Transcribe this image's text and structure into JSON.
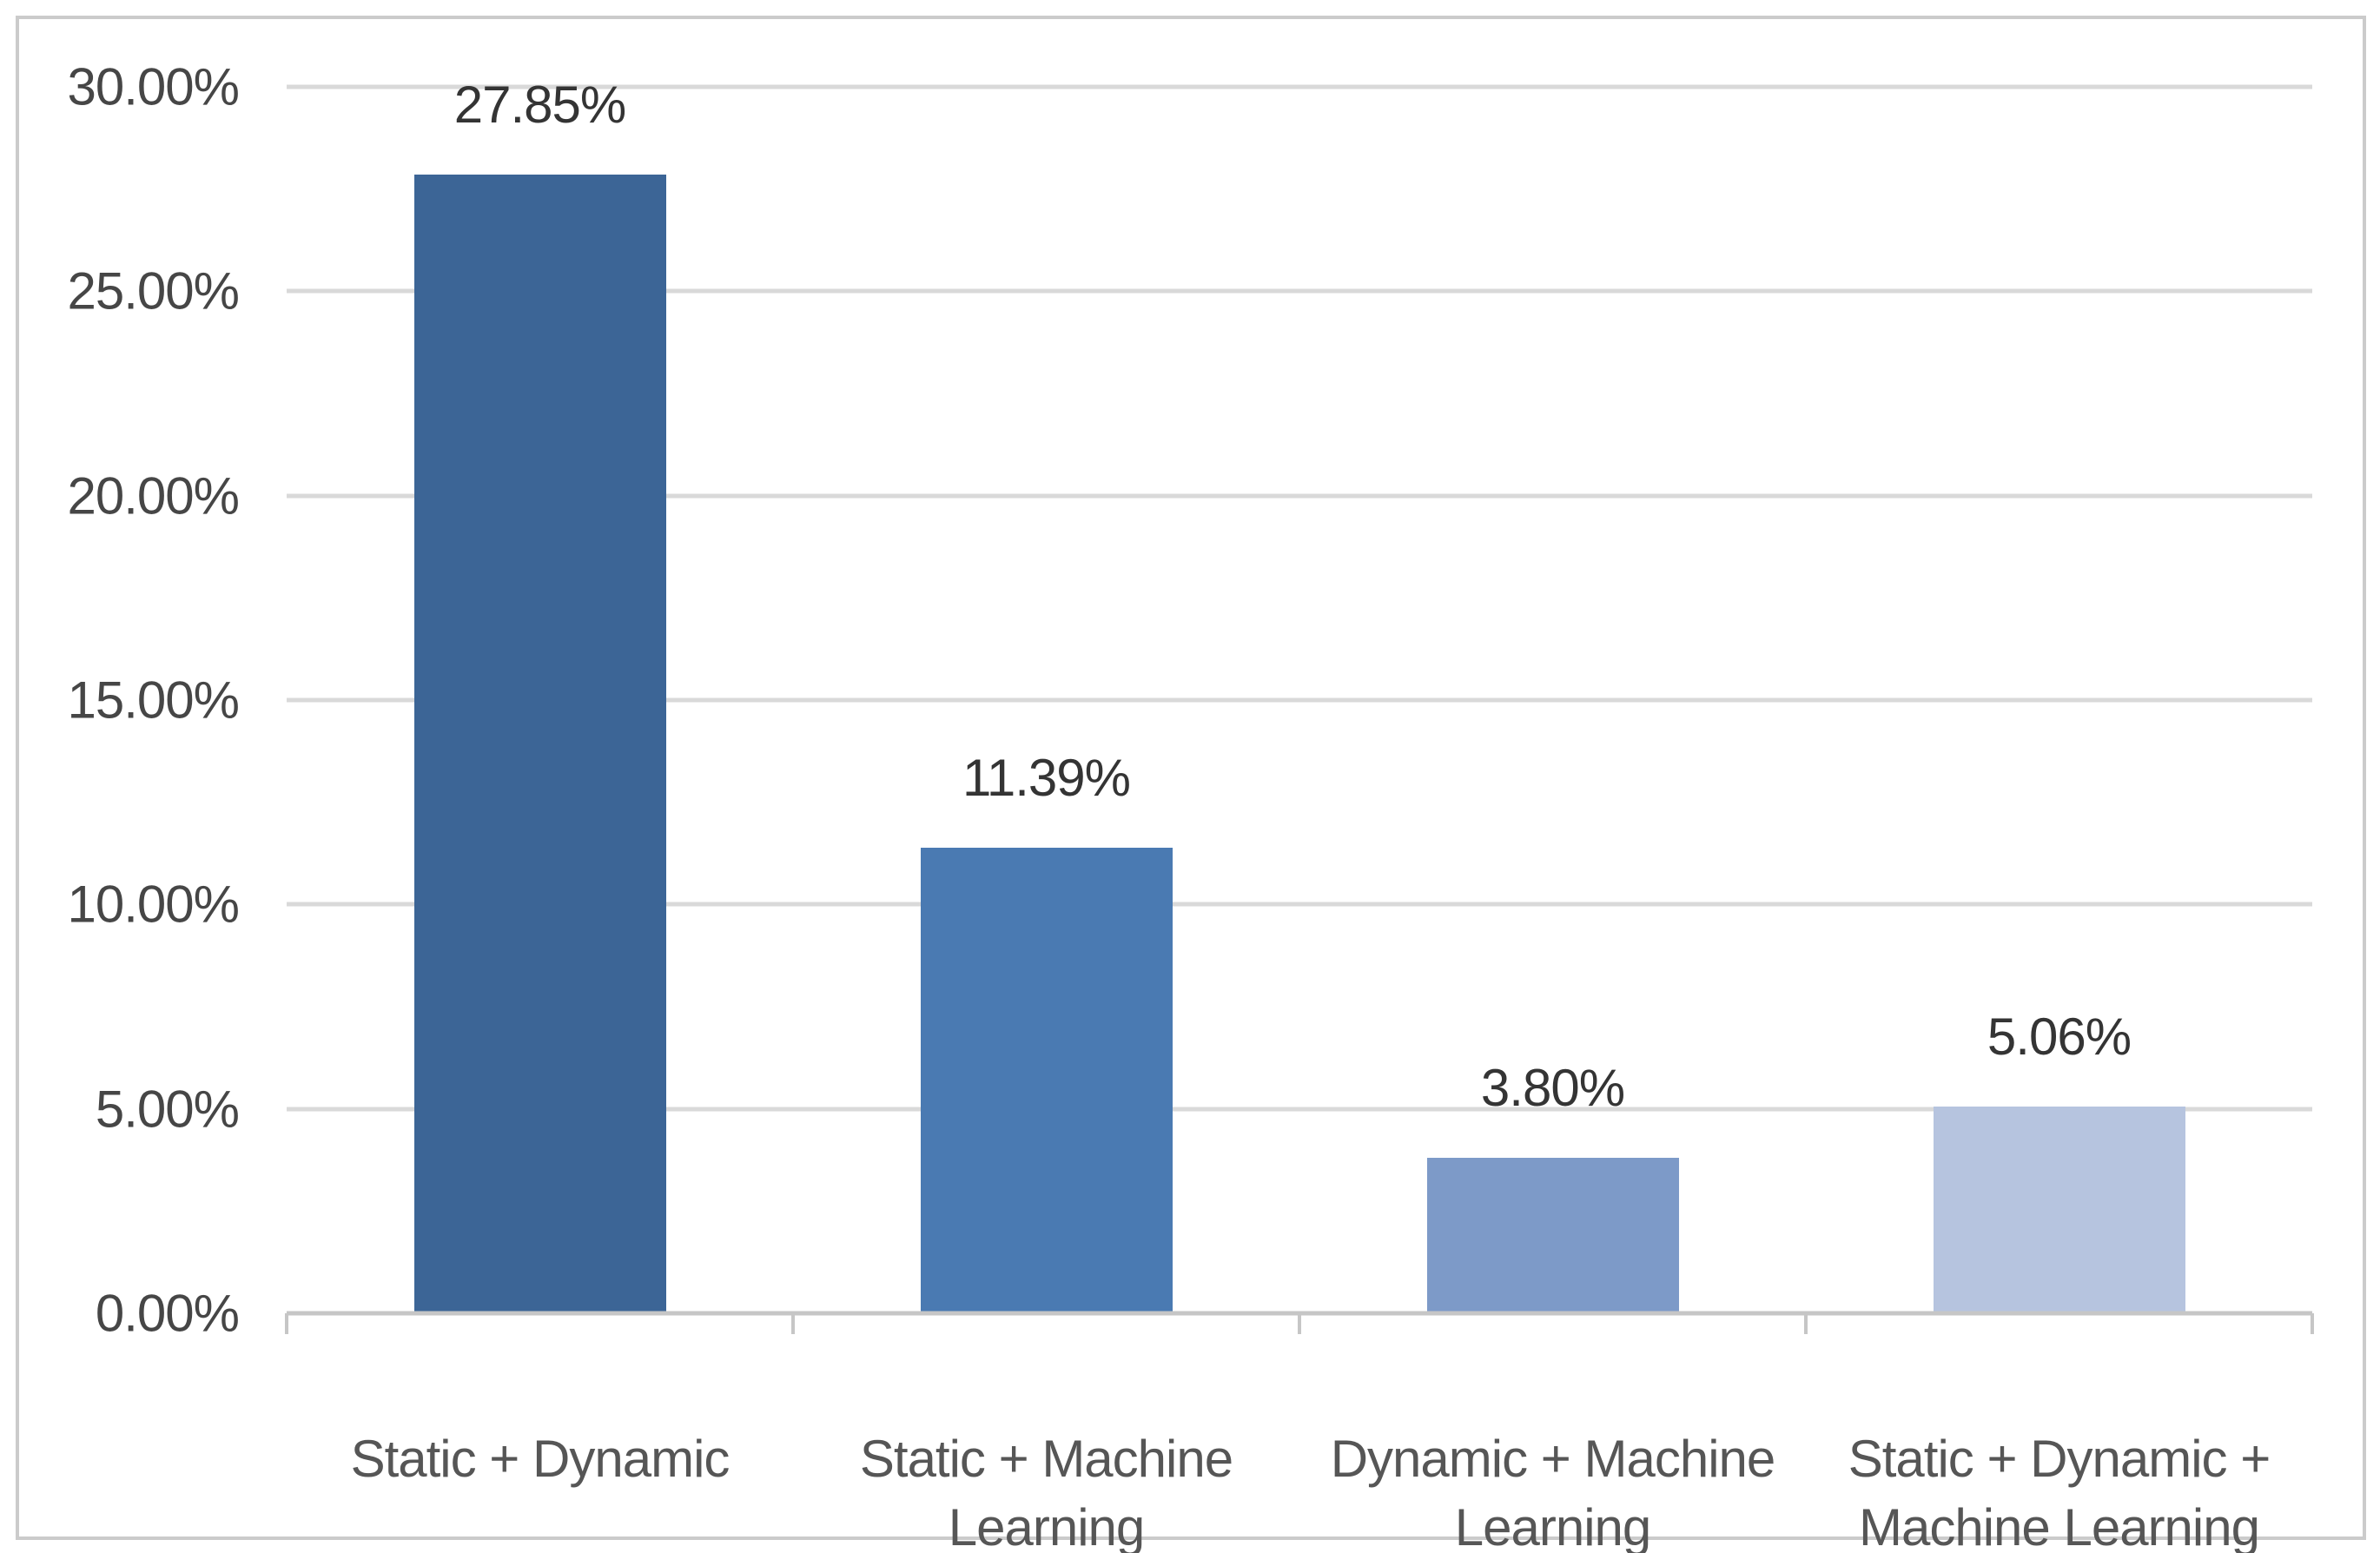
{
  "chart_data": {
    "type": "bar",
    "title": "",
    "xlabel": "",
    "ylabel": "",
    "categories": [
      "Static + Dynamic",
      "Static + Machine Learning",
      "Dynamic + Machine Learning",
      "Static + Dynamic + Machine Learning"
    ],
    "values": [
      27.85,
      11.39,
      3.8,
      5.06
    ],
    "data_labels": [
      "27.85%",
      "11.39%",
      "3.80%",
      "5.06%"
    ],
    "bar_colors": [
      "#3c6596",
      "#4a7ab2",
      "#7d9ac8",
      "#b6c4df"
    ],
    "ylim": [
      0,
      30
    ],
    "yticks": [
      {
        "value": 0,
        "label": "0.00%"
      },
      {
        "value": 5,
        "label": "5.00%"
      },
      {
        "value": 10,
        "label": "10.00%"
      },
      {
        "value": 15,
        "label": "15.00%"
      },
      {
        "value": 20,
        "label": "20.00%"
      },
      {
        "value": 25,
        "label": "25.00%"
      },
      {
        "value": 30,
        "label": "30.00%"
      }
    ],
    "grid": "horizontal",
    "legend_position": "none"
  },
  "frame": {
    "border_color": "#cbcbcb",
    "background_color": "#ffffff",
    "gridline_color": "#d9d9d9",
    "axis_color": "#c6c6c6"
  }
}
